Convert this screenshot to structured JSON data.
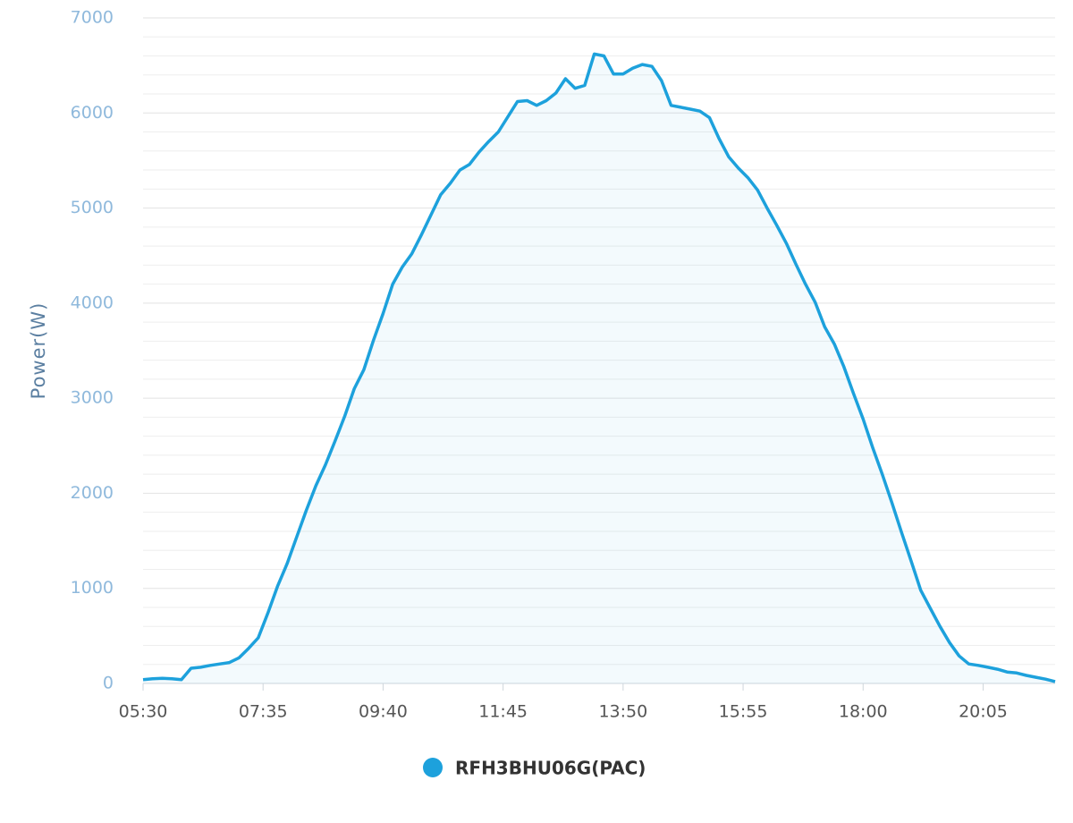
{
  "chart_data": {
    "type": "area",
    "y_label": "Power(W)",
    "x": [
      "05:30",
      "05:40",
      "05:50",
      "06:00",
      "06:10",
      "06:20",
      "06:30",
      "06:40",
      "06:50",
      "07:00",
      "07:10",
      "07:20",
      "07:30",
      "07:40",
      "07:50",
      "08:00",
      "08:10",
      "08:20",
      "08:30",
      "08:40",
      "08:50",
      "09:00",
      "09:10",
      "09:20",
      "09:30",
      "09:40",
      "09:50",
      "10:00",
      "10:10",
      "10:20",
      "10:30",
      "10:40",
      "10:50",
      "11:00",
      "11:10",
      "11:20",
      "11:30",
      "11:40",
      "11:50",
      "12:00",
      "12:10",
      "12:20",
      "12:30",
      "12:40",
      "12:50",
      "13:00",
      "13:10",
      "13:20",
      "13:30",
      "13:40",
      "13:50",
      "14:00",
      "14:10",
      "14:20",
      "14:30",
      "14:40",
      "14:50",
      "15:00",
      "15:10",
      "15:20",
      "15:30",
      "15:40",
      "15:50",
      "16:00",
      "16:10",
      "16:20",
      "16:30",
      "16:40",
      "16:50",
      "17:00",
      "17:10",
      "17:20",
      "17:30",
      "17:40",
      "17:50",
      "18:00",
      "18:10",
      "18:20",
      "18:30",
      "18:40",
      "18:50",
      "19:00",
      "19:10",
      "19:20",
      "19:30",
      "19:40",
      "19:50",
      "20:00",
      "20:10",
      "20:20",
      "20:30",
      "20:40",
      "20:50",
      "21:00",
      "21:10",
      "21:20"
    ],
    "series": [
      {
        "name": "RFH3BHU06G(PAC)",
        "color": "#1da1dc",
        "values": [
          40,
          50,
          55,
          50,
          40,
          160,
          170,
          190,
          205,
          220,
          270,
          370,
          480,
          740,
          1020,
          1260,
          1540,
          1820,
          2080,
          2300,
          2550,
          2810,
          3100,
          3300,
          3610,
          3890,
          4200,
          4380,
          4520,
          4720,
          4930,
          5140,
          5260,
          5400,
          5460,
          5590,
          5700,
          5800,
          5960,
          6120,
          6130,
          6080,
          6130,
          6210,
          6360,
          6260,
          6290,
          6620,
          6600,
          6410,
          6410,
          6470,
          6510,
          6490,
          6340,
          6080,
          6060,
          6040,
          6020,
          5950,
          5730,
          5540,
          5420,
          5320,
          5190,
          5000,
          4820,
          4630,
          4410,
          4200,
          4010,
          3750,
          3570,
          3330,
          3050,
          2780,
          2480,
          2200,
          1900,
          1590,
          1290,
          980,
          790,
          600,
          430,
          290,
          205,
          190,
          170,
          150,
          120,
          110,
          85,
          65,
          45,
          20
        ]
      }
    ],
    "xlim": [
      "05:30",
      "21:20"
    ],
    "xticks": [
      "05:30",
      "07:35",
      "09:40",
      "11:45",
      "13:50",
      "15:55",
      "18:00",
      "20:05"
    ],
    "ylim": [
      0,
      7000
    ],
    "yticks": [
      0,
      1000,
      2000,
      3000,
      4000,
      5000,
      6000,
      7000
    ],
    "grid": true,
    "legend": "bottom"
  }
}
